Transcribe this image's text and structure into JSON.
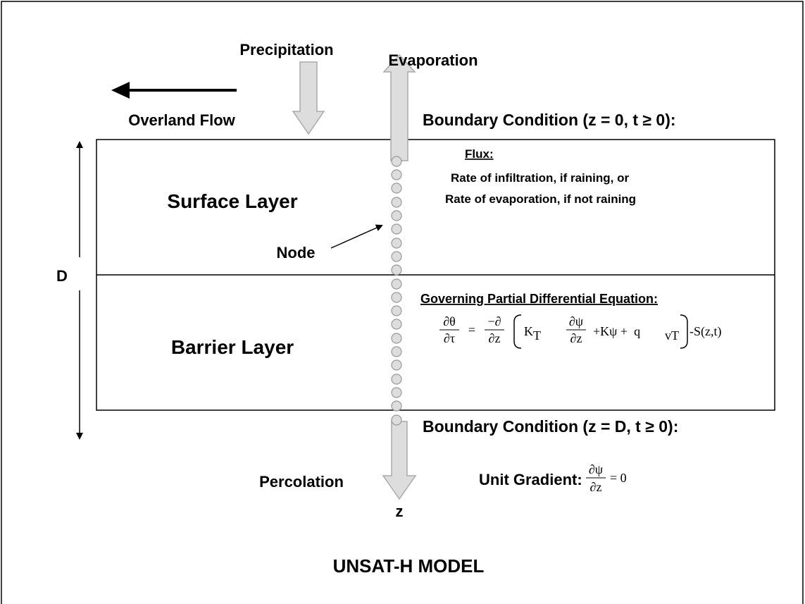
{
  "precipitation": "Precipitation",
  "evaporation": "Evaporation",
  "overland_flow": "Overland Flow",
  "boundary_top": "Boundary Condition (z = 0, t ≥ 0):",
  "surface_layer": "Surface Layer",
  "barrier_layer": "Barrier Layer",
  "flux": {
    "title": "Flux:",
    "line1": "Rate of infiltration, if raining, or",
    "line2": "Rate of evaporation, if not raining"
  },
  "node": "Node",
  "depth": "D",
  "governing": {
    "title": "Governing Partial Differential Equation:",
    "equation": {
      "lhs_num": "∂θ",
      "lhs_den": "∂τ",
      "eq": "=",
      "op_num": "−∂",
      "op_den": "∂z",
      "k": "K",
      "k_sub": "T",
      "grad_num": "∂ψ",
      "grad_den": "∂z",
      "mid": "+Kψ +  q",
      "q_sub": "vT",
      "tail": "-S(z,t)"
    }
  },
  "boundary_bottom": "Boundary Condition (z = D, t ≥ 0):",
  "percolation": "Percolation",
  "unit_gradient": {
    "label": "Unit Gradient:",
    "num": "∂ψ",
    "den": "∂z",
    "rhs": "= 0"
  },
  "z_axis": "z",
  "model_title": "UNSAT-H MODEL"
}
